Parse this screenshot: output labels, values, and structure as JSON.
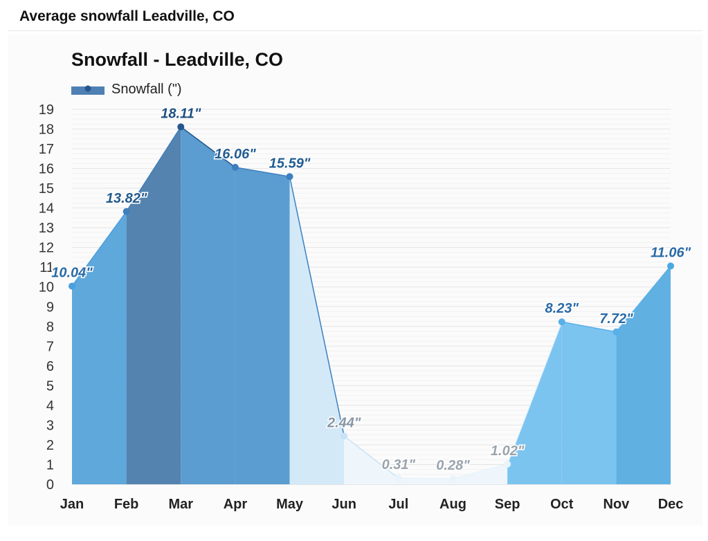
{
  "page": {
    "title": "Average snowfall Leadville, CO"
  },
  "chart_data": {
    "type": "area",
    "title": "Snowfall - Leadville, CO",
    "legend": {
      "label": "Snowfall (\")",
      "placement": "top-left"
    },
    "categories": [
      "Jan",
      "Feb",
      "Mar",
      "Apr",
      "May",
      "Jun",
      "Jul",
      "Aug",
      "Sep",
      "Oct",
      "Nov",
      "Dec"
    ],
    "series": [
      {
        "name": "Snowfall (\")",
        "values": [
          10.04,
          13.82,
          18.11,
          16.06,
          15.59,
          2.44,
          0.31,
          0.28,
          1.02,
          8.23,
          7.72,
          11.06
        ]
      }
    ],
    "data_labels": [
      "10.04\"",
      "13.82\"",
      "18.11\"",
      "16.06\"",
      "15.59\"",
      "2.44\"",
      "0.31\"",
      "0.28\"",
      "1.02\"",
      "8.23\"",
      "7.72\"",
      "11.06\""
    ],
    "yticks": [
      "0",
      "1",
      "2",
      "3",
      "4",
      "5",
      "6",
      "7",
      "8",
      "9",
      "10",
      "11",
      "12",
      "13",
      "14",
      "15",
      "16",
      "17",
      "18",
      "19"
    ],
    "ylim": [
      0,
      19
    ],
    "xlabel": "",
    "ylabel": "",
    "grid": true,
    "segment_colors": [
      "#5fa8db",
      "#5583b0",
      "#5b9dd0",
      "#5b9dd0",
      "#d3e9f8",
      "#eef6fc",
      "#eef6fc",
      "#eef6fc",
      "#7cc4f0",
      "#7cc4f0",
      "#60b0e2"
    ],
    "point_colors": [
      "#49a0e0",
      "#3f7fbd",
      "#24578f",
      "#3b7fbf",
      "#3b7fbf",
      "#c9e3f6",
      "#e8f3fb",
      "#e8f3fb",
      "#e8f3fb",
      "#58b0ea",
      "#58b0ea",
      "#49a8e4"
    ],
    "label_colors": [
      "#2a6aa6",
      "#245a8c",
      "#1f4f82",
      "#235d92",
      "#235d92",
      "#8796a4",
      "#9aa4ad",
      "#9aa4ad",
      "#9aa4ad",
      "#2a6aa6",
      "#2a6aa6",
      "#2a6aa6"
    ]
  }
}
